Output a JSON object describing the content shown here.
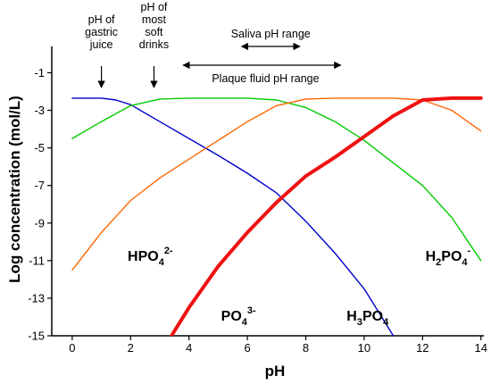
{
  "chart_data": {
    "type": "line",
    "xlabel": "pH",
    "ylabel": "Log concentration (mol/L)",
    "xlim": [
      -0.7,
      14.1
    ],
    "ylim": [
      -15,
      0.4
    ],
    "x_ticks": [
      0,
      2,
      4,
      6,
      8,
      10,
      12,
      14
    ],
    "y_ticks": [
      -1,
      -3,
      -5,
      -7,
      -9,
      -11,
      -13,
      -15
    ],
    "grid": false,
    "series": [
      {
        "name": "H₃PO₄",
        "color": "#0000cc",
        "points": [
          [
            0,
            -2.35
          ],
          [
            1,
            -2.35
          ],
          [
            1.5,
            -2.45
          ],
          [
            2,
            -2.7
          ],
          [
            3,
            -3.6
          ],
          [
            4,
            -4.5
          ],
          [
            5,
            -5.4
          ],
          [
            6,
            -6.35
          ],
          [
            7,
            -7.4
          ],
          [
            8,
            -8.9
          ],
          [
            9,
            -10.6
          ],
          [
            10,
            -12.5
          ],
          [
            11,
            -15
          ]
        ]
      },
      {
        "name": "H₂PO₄⁻",
        "color": "#00cc00",
        "points": [
          [
            0,
            -4.5
          ],
          [
            1,
            -3.6
          ],
          [
            2,
            -2.75
          ],
          [
            3,
            -2.4
          ],
          [
            4,
            -2.35
          ],
          [
            6,
            -2.35
          ],
          [
            7,
            -2.45
          ],
          [
            8,
            -2.85
          ],
          [
            9,
            -3.6
          ],
          [
            10,
            -4.6
          ],
          [
            11,
            -5.8
          ],
          [
            12,
            -7
          ],
          [
            13,
            -8.7
          ],
          [
            14,
            -11
          ]
        ]
      },
      {
        "name": "HPO₄²⁻",
        "color": "#ff6600",
        "points": [
          [
            0,
            -11.5
          ],
          [
            1,
            -9.5
          ],
          [
            2,
            -7.8
          ],
          [
            3,
            -6.6
          ],
          [
            4,
            -5.6
          ],
          [
            5,
            -4.6
          ],
          [
            6,
            -3.6
          ],
          [
            7,
            -2.75
          ],
          [
            8,
            -2.4
          ],
          [
            9,
            -2.35
          ],
          [
            11,
            -2.35
          ],
          [
            12,
            -2.45
          ],
          [
            13,
            -3
          ],
          [
            14,
            -4.1
          ]
        ]
      },
      {
        "name": "PO₄³⁻",
        "color": "#ee1111",
        "points": [
          [
            3.4,
            -15
          ],
          [
            4,
            -13.5
          ],
          [
            5,
            -11.3
          ],
          [
            6,
            -9.5
          ],
          [
            7,
            -7.9
          ],
          [
            8,
            -6.5
          ],
          [
            9,
            -5.5
          ],
          [
            10,
            -4.4
          ],
          [
            11,
            -3.3
          ],
          [
            12,
            -2.45
          ],
          [
            13,
            -2.35
          ],
          [
            14,
            -2.35
          ]
        ]
      }
    ],
    "series_labels": [
      {
        "base": "HPO",
        "sub": "4",
        "sup": "2-",
        "x": 1.9,
        "y": -11
      },
      {
        "base": "H",
        "sub": "2",
        "mid": "PO",
        "sub2": "4",
        "sup": "-",
        "x": 12.1,
        "y": -11
      },
      {
        "base": "PO",
        "sub": "4",
        "sup": "3-",
        "x": 5.1,
        "y": -14.2
      },
      {
        "base": "H",
        "sub": "3",
        "mid": "PO",
        "sub2": "4",
        "x": 9.4,
        "y": -14.2
      }
    ],
    "annotations": {
      "gastric": {
        "lines": [
          "pH of",
          "gastric",
          "juice"
        ],
        "ph": 1
      },
      "soft_drinks": {
        "lines": [
          "pH of",
          "most",
          "soft",
          "drinks"
        ],
        "ph": 2.8
      },
      "saliva": {
        "text": "Saliva pH range",
        "from": 5.8,
        "to": 7.8
      },
      "plaque": {
        "text": "Plaque fluid pH range",
        "from": 3.8,
        "to": 9.2
      }
    }
  }
}
